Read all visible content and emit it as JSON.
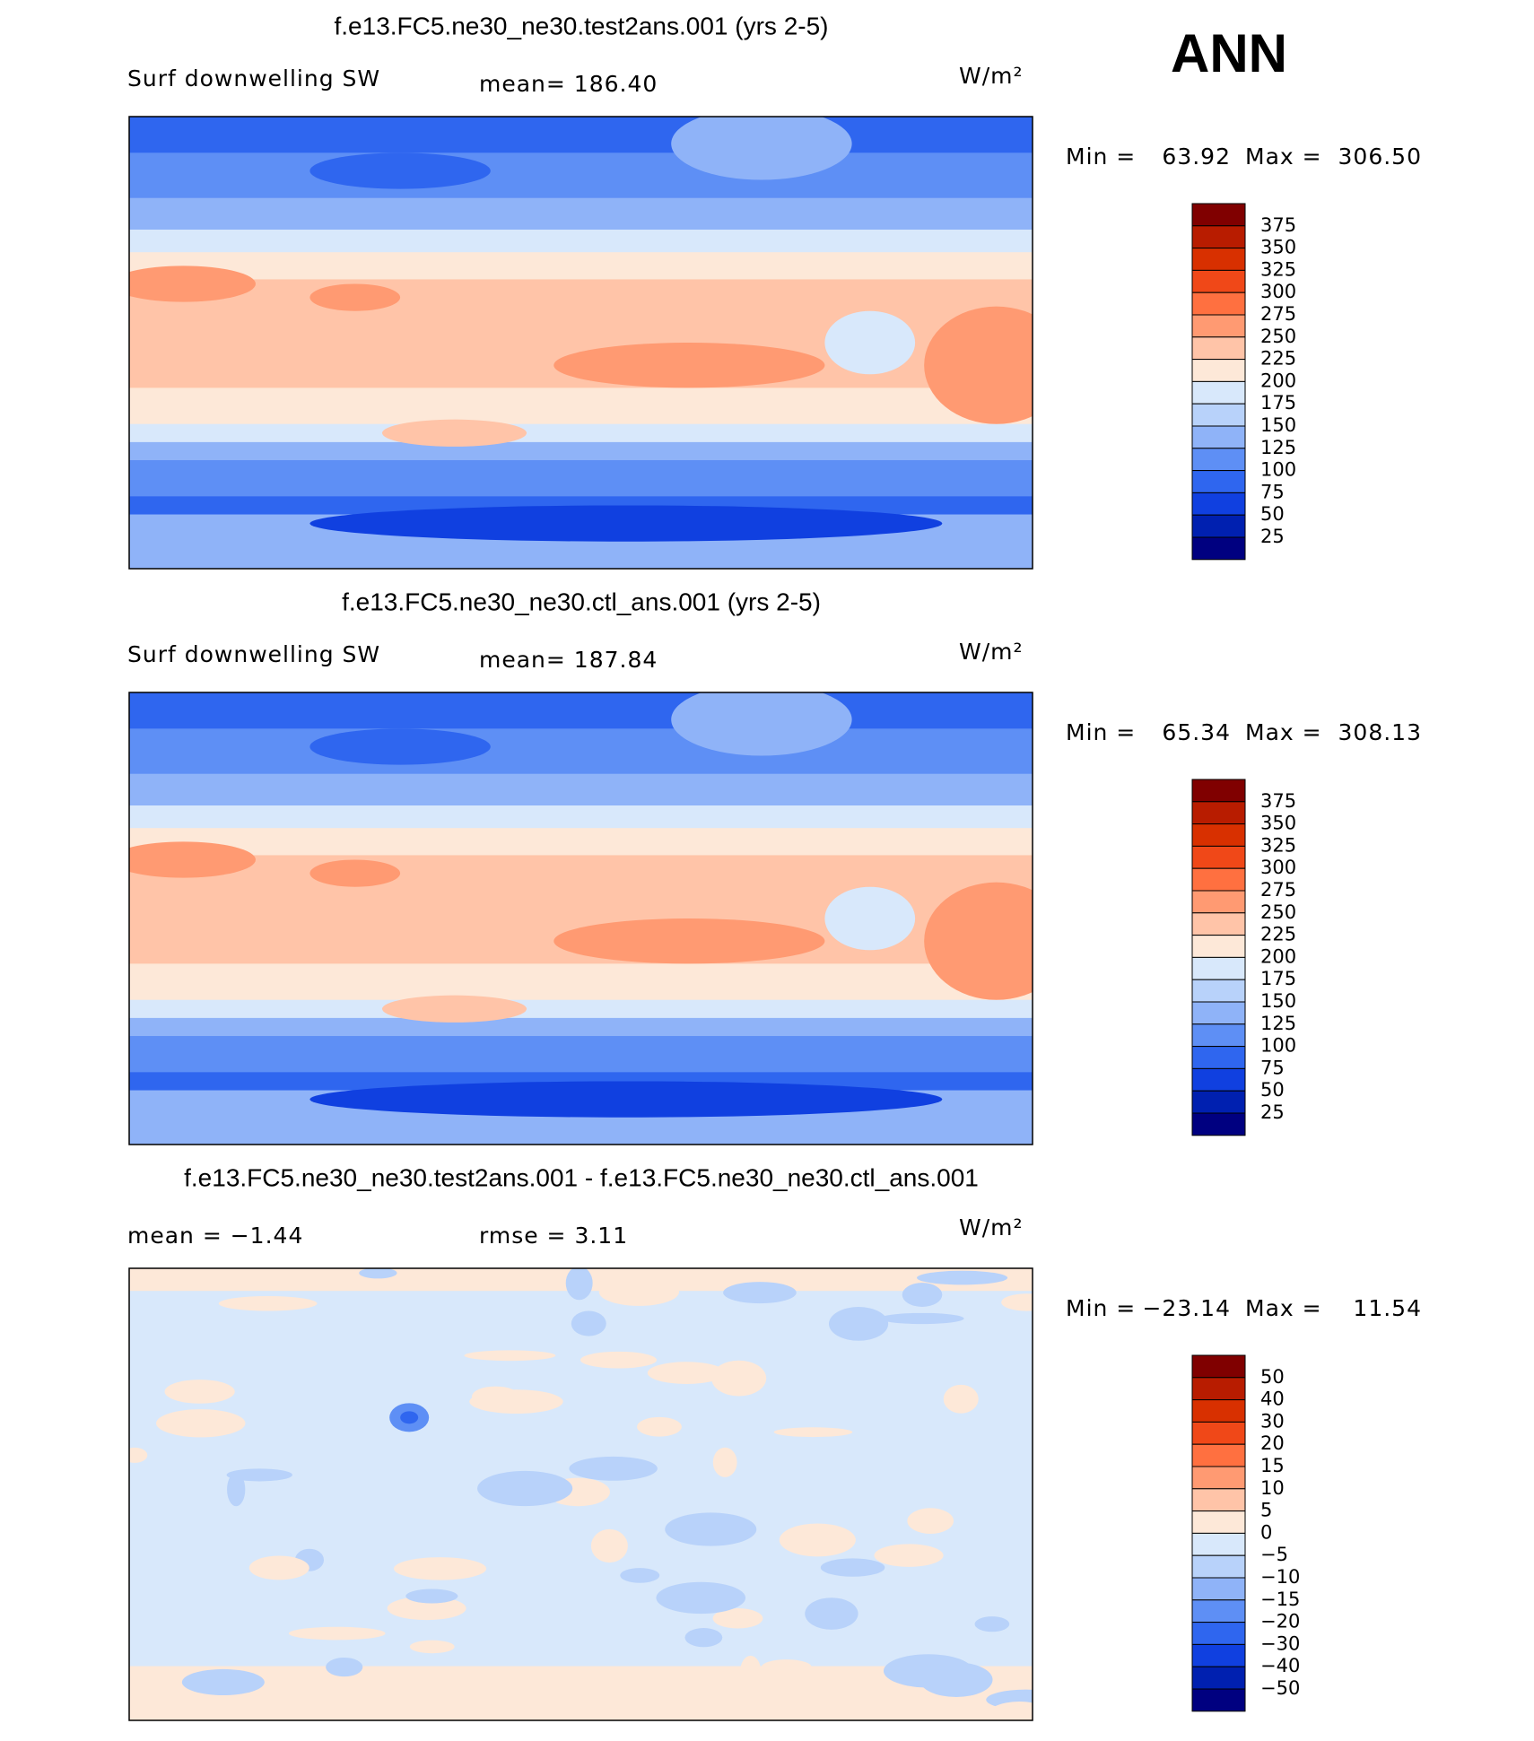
{
  "header": {
    "season": "ANN"
  },
  "panels": [
    {
      "title": "f.e13.FC5.ne30_ne30.test2ans.001 (yrs 2-5)",
      "left": "Surf downwelling SW",
      "center": "mean= 186.40",
      "units": "W/m²",
      "min_text": "Min =",
      "min": "63.92",
      "max_text": "Max =",
      "max": "306.50",
      "levels": [
        "375",
        "350",
        "325",
        "300",
        "275",
        "250",
        "225",
        "200",
        "175",
        "150",
        "125",
        "100",
        "75",
        "50",
        "25"
      ]
    },
    {
      "title": "f.e13.FC5.ne30_ne30.ctl_ans.001 (yrs 2-5)",
      "left": "Surf downwelling SW",
      "center": "mean= 187.84",
      "units": "W/m²",
      "min_text": "Min =",
      "min": "65.34",
      "max_text": "Max =",
      "max": "308.13",
      "levels": [
        "375",
        "350",
        "325",
        "300",
        "275",
        "250",
        "225",
        "200",
        "175",
        "150",
        "125",
        "100",
        "75",
        "50",
        "25"
      ]
    },
    {
      "title": "f.e13.FC5.ne30_ne30.test2ans.001 - f.e13.FC5.ne30_ne30.ctl_ans.001",
      "left": "mean =  −1.44",
      "center": "rmse =    3.11",
      "units": "W/m²",
      "min_text": "Min =",
      "min": "−23.14",
      "max_text": "Max =",
      "max": "11.54",
      "levels": [
        "50",
        "40",
        "30",
        "20",
        "15",
        "10",
        "5",
        "0",
        "−5",
        "−10",
        "−15",
        "−20",
        "−30",
        "−40",
        "−50"
      ]
    }
  ],
  "colors": [
    "#800000",
    "#b81c00",
    "#d83000",
    "#f04818",
    "#ff7040",
    "#ff9a72",
    "#ffc4a8",
    "#fde8d8",
    "#d8e8fb",
    "#b8d2fa",
    "#8fb3f8",
    "#5e8ff5",
    "#2f66ef",
    "#1040e0",
    "#0020b0",
    "#000080"
  ]
}
